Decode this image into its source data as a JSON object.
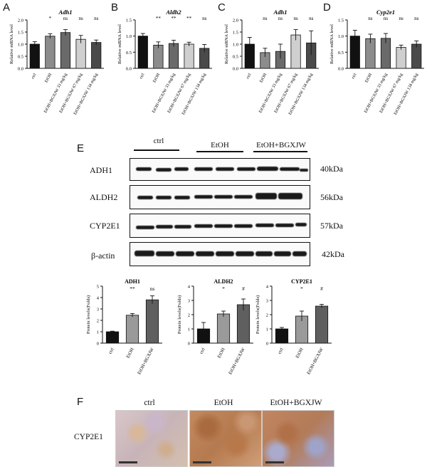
{
  "panels": {
    "A": "A",
    "B": "B",
    "C": "C",
    "D": "D",
    "E": "E",
    "F": "F"
  },
  "sig_marker": "*",
  "top_charts": [
    {
      "id": "A",
      "title": "Adh1",
      "ylabel": "Relative mRNA level",
      "ylim": [
        0,
        2
      ],
      "yticks": [
        "0.0",
        "0.5",
        "1.0",
        "1.5",
        "2.0"
      ],
      "categories": [
        "ctrl",
        "EtOH",
        "EtOH+BGXJW 33 mg/kg",
        "EtOH+BGXJW 67 mg/kg",
        "EtOH+BGXJW 134 mg/kg"
      ],
      "values": [
        1.0,
        1.33,
        1.48,
        1.2,
        1.07
      ],
      "errors": [
        0.1,
        0.1,
        0.12,
        0.16,
        0.1
      ],
      "sig": [
        "",
        "*",
        "ns",
        "ns",
        "ns"
      ]
    },
    {
      "id": "B",
      "title": "Aldh2",
      "ylabel": "Relative mRNA level",
      "ylim": [
        0,
        1.5
      ],
      "yticks": [
        "0.0",
        "0.5",
        "1.0",
        "1.5"
      ],
      "categories": [
        "ctrl",
        "EtOH",
        "EtOH+BGXJW 33 mg/kg",
        "EtOH+BGXJW 67 mg/kg",
        "EtOH+BGXJW 134 mg/kg"
      ],
      "values": [
        1.0,
        0.72,
        0.77,
        0.75,
        0.62
      ],
      "errors": [
        0.08,
        0.1,
        0.1,
        0.06,
        0.12
      ],
      "sig": [
        "",
        "**",
        "**",
        "**",
        "ns"
      ]
    },
    {
      "id": "C",
      "title": "Adh1",
      "ylabel": "Relative mRNA level",
      "ylim": [
        0,
        2
      ],
      "yticks": [
        "0.0",
        "0.5",
        "1.0",
        "1.5",
        "2.0"
      ],
      "categories": [
        "ctrl",
        "EtOH",
        "EtOH+BGXJW 33 mg/kg",
        "EtOH+BGXJW 67 mg/kg",
        "EtOH+BGXJW 134 mg/kg"
      ],
      "values": [
        1.0,
        0.65,
        0.7,
        1.38,
        1.05
      ],
      "errors": [
        0.28,
        0.18,
        0.3,
        0.22,
        0.5
      ],
      "sig": [
        "",
        "ns",
        "ns",
        "ns",
        "ns"
      ]
    },
    {
      "id": "D",
      "title": "Cyp2e1",
      "ylabel": "Relative mRNA level",
      "ylim": [
        0,
        1.5
      ],
      "yticks": [
        "0.0",
        "0.5",
        "1.0",
        "1.5"
      ],
      "categories": [
        "ctrl",
        "EtOH",
        "EtOH+BGXJW 33 mg/kg",
        "EtOH+BGXJW 67 mg/kg",
        "EtOH+BGXJW 134 mg/kg"
      ],
      "values": [
        1.0,
        0.92,
        0.93,
        0.65,
        0.75
      ],
      "errors": [
        0.18,
        0.14,
        0.15,
        0.07,
        0.1
      ],
      "sig": [
        "",
        "ns",
        "ns",
        "ns",
        "ns"
      ]
    }
  ],
  "western": {
    "groups": [
      "ctrl",
      "EtOH",
      "EtOH+BGXJW"
    ],
    "proteins": [
      {
        "name": "ADH1",
        "kda": "40kDa"
      },
      {
        "name": "ALDH2",
        "kda": "56kDa"
      },
      {
        "name": "CYP2E1",
        "kda": "57kDa"
      },
      {
        "name": "β-actin",
        "kda": "42kDa"
      }
    ]
  },
  "bottom_charts": [
    {
      "id": "E1",
      "title": "ADH1",
      "ylabel": "Protein levels(Folds)",
      "ylim": [
        0,
        5
      ],
      "yticks": [
        "0",
        "1",
        "2",
        "3",
        "4",
        "5"
      ],
      "categories": [
        "ctrl",
        "EtOH",
        "EtOH+BGXJW"
      ],
      "values": [
        1.0,
        2.45,
        3.8
      ],
      "errors": [
        0.05,
        0.15,
        0.35
      ],
      "sig": [
        "",
        "**",
        "ns"
      ]
    },
    {
      "id": "E2",
      "title": "ALDH2",
      "ylabel": "Protein levels(Folds)",
      "ylim": [
        0,
        4
      ],
      "yticks": [
        "0",
        "1",
        "2",
        "3",
        "4"
      ],
      "categories": [
        "ctrl",
        "EtOH",
        "EtOH+BGXJW"
      ],
      "values": [
        1.0,
        2.05,
        2.7
      ],
      "errors": [
        0.45,
        0.2,
        0.4
      ],
      "sig": [
        "",
        "*",
        "#"
      ]
    },
    {
      "id": "E3",
      "title": "CYP2E1",
      "ylabel": "Protein levels(Folds)",
      "ylim": [
        0,
        4
      ],
      "yticks": [
        "0",
        "1",
        "2",
        "3",
        "4"
      ],
      "categories": [
        "ctrl",
        "EtOH",
        "EtOH+BGXJW"
      ],
      "values": [
        1.0,
        1.9,
        2.6
      ],
      "errors": [
        0.1,
        0.35,
        0.12
      ],
      "sig": [
        "",
        "*",
        "#"
      ]
    }
  ],
  "ihc": {
    "row_label": "CYP2E1",
    "columns": [
      "ctrl",
      "EtOH",
      "EtOH+BGXJW"
    ]
  }
}
